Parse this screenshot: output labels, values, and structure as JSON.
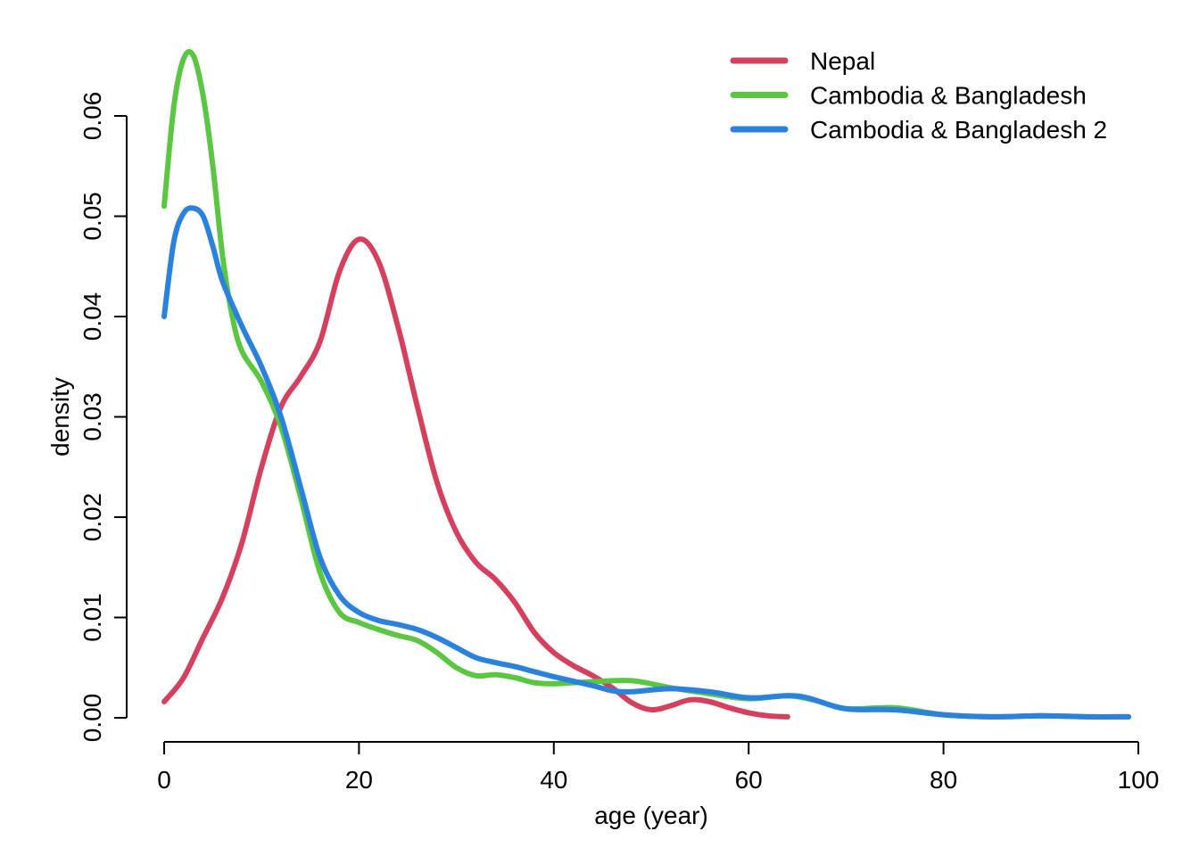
{
  "chart_data": {
    "type": "line",
    "title": "",
    "xlabel": "age (year)",
    "ylabel": "density",
    "xlim": [
      0,
      100
    ],
    "ylim": [
      0,
      0.06
    ],
    "x_ticks": [
      0,
      20,
      40,
      60,
      80,
      100
    ],
    "x_tick_labels": [
      "0",
      "20",
      "40",
      "60",
      "80",
      "100"
    ],
    "y_ticks": [
      0,
      0.01,
      0.02,
      0.03,
      0.04,
      0.05,
      0.06
    ],
    "y_tick_labels": [
      "0.00",
      "0.01",
      "0.02",
      "0.03",
      "0.04",
      "0.05",
      "0.06"
    ],
    "grid": false,
    "legend_position": "top-right",
    "series": [
      {
        "name": "Nepal",
        "color": "#d5405e",
        "points": [
          [
            0,
            0.0016
          ],
          [
            2,
            0.004
          ],
          [
            4,
            0.008
          ],
          [
            6,
            0.012
          ],
          [
            8,
            0.0175
          ],
          [
            10,
            0.025
          ],
          [
            12,
            0.031
          ],
          [
            14,
            0.034
          ],
          [
            16,
            0.0375
          ],
          [
            18,
            0.0445
          ],
          [
            20,
            0.0477
          ],
          [
            22,
            0.0455
          ],
          [
            24,
            0.039
          ],
          [
            26,
            0.031
          ],
          [
            28,
            0.0235
          ],
          [
            30,
            0.0185
          ],
          [
            32,
            0.0155
          ],
          [
            34,
            0.0138
          ],
          [
            36,
            0.0115
          ],
          [
            38,
            0.0085
          ],
          [
            40,
            0.0065
          ],
          [
            42,
            0.0052
          ],
          [
            44,
            0.0042
          ],
          [
            46,
            0.003
          ],
          [
            48,
            0.0015
          ],
          [
            50,
            0.0008
          ],
          [
            52,
            0.0012
          ],
          [
            54,
            0.0018
          ],
          [
            56,
            0.0016
          ],
          [
            58,
            0.001
          ],
          [
            60,
            0.0005
          ],
          [
            62,
            0.0002
          ],
          [
            64,
            0.0001
          ]
        ]
      },
      {
        "name": "Cambodia & Bangladesh",
        "color": "#5ac641",
        "points": [
          [
            0,
            0.051
          ],
          [
            1,
            0.061
          ],
          [
            2,
            0.0657
          ],
          [
            3,
            0.066
          ],
          [
            4,
            0.062
          ],
          [
            5,
            0.055
          ],
          [
            6,
            0.046
          ],
          [
            7,
            0.04
          ],
          [
            8,
            0.0365
          ],
          [
            10,
            0.0335
          ],
          [
            12,
            0.029
          ],
          [
            14,
            0.022
          ],
          [
            16,
            0.0145
          ],
          [
            18,
            0.0105
          ],
          [
            20,
            0.0095
          ],
          [
            22,
            0.0088
          ],
          [
            24,
            0.0082
          ],
          [
            26,
            0.0077
          ],
          [
            28,
            0.0065
          ],
          [
            30,
            0.005
          ],
          [
            32,
            0.0042
          ],
          [
            34,
            0.0043
          ],
          [
            36,
            0.004
          ],
          [
            38,
            0.0035
          ],
          [
            40,
            0.0034
          ],
          [
            44,
            0.0036
          ],
          [
            48,
            0.0037
          ],
          [
            52,
            0.003
          ],
          [
            56,
            0.0024
          ],
          [
            60,
            0.0019
          ],
          [
            64,
            0.0022
          ],
          [
            67,
            0.0017
          ],
          [
            70,
            0.0009
          ],
          [
            75,
            0.001
          ],
          [
            80,
            0.0003
          ],
          [
            85,
            0.0001
          ],
          [
            90,
            0.0002
          ],
          [
            95,
            0.0001
          ],
          [
            99,
            0.0001
          ]
        ]
      },
      {
        "name": "Cambodia & Bangladesh 2",
        "color": "#2a82dd",
        "points": [
          [
            0,
            0.04
          ],
          [
            1,
            0.0475
          ],
          [
            2,
            0.0503
          ],
          [
            3,
            0.0508
          ],
          [
            4,
            0.05
          ],
          [
            5,
            0.047
          ],
          [
            6,
            0.0435
          ],
          [
            8,
            0.039
          ],
          [
            10,
            0.035
          ],
          [
            12,
            0.03
          ],
          [
            14,
            0.023
          ],
          [
            16,
            0.016
          ],
          [
            18,
            0.0122
          ],
          [
            20,
            0.0105
          ],
          [
            22,
            0.0097
          ],
          [
            24,
            0.0093
          ],
          [
            26,
            0.0088
          ],
          [
            28,
            0.008
          ],
          [
            30,
            0.007
          ],
          [
            32,
            0.006
          ],
          [
            34,
            0.0055
          ],
          [
            36,
            0.0051
          ],
          [
            38,
            0.0046
          ],
          [
            40,
            0.0041
          ],
          [
            44,
            0.0032
          ],
          [
            46,
            0.0027
          ],
          [
            48,
            0.0026
          ],
          [
            52,
            0.0029
          ],
          [
            56,
            0.0026
          ],
          [
            60,
            0.002
          ],
          [
            64,
            0.0022
          ],
          [
            66,
            0.002
          ],
          [
            70,
            0.0009
          ],
          [
            75,
            0.0008
          ],
          [
            80,
            0.0003
          ],
          [
            85,
            0.0001
          ],
          [
            90,
            0.0002
          ],
          [
            95,
            0.0001
          ],
          [
            99,
            0.0001
          ]
        ]
      }
    ]
  }
}
